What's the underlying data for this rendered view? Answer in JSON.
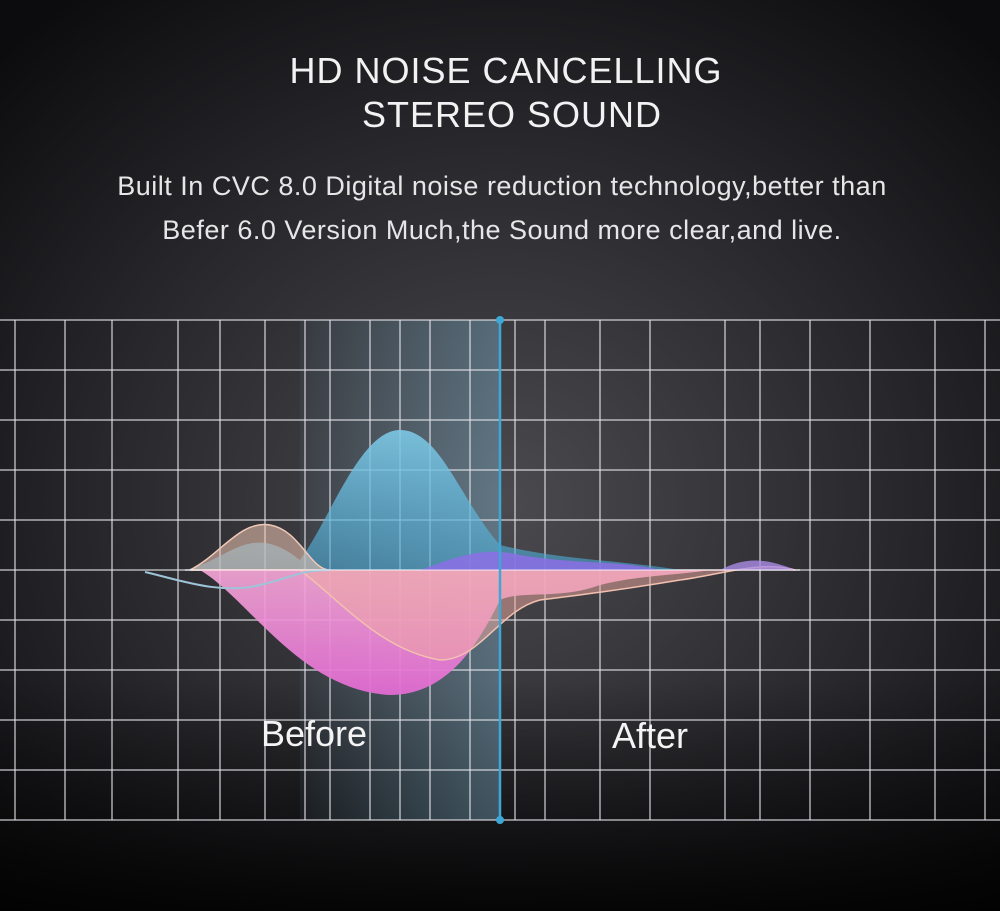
{
  "header": {
    "title": [
      "HD NOISE CANCELLING",
      "STEREO SOUND"
    ],
    "description": [
      "Built In CVC 8.0 Digital noise reduction technology,better than",
      "Befer 6.0 Version Much,the Sound more clear,and live."
    ]
  },
  "labels": {
    "before": "Before",
    "after": "After"
  }
}
